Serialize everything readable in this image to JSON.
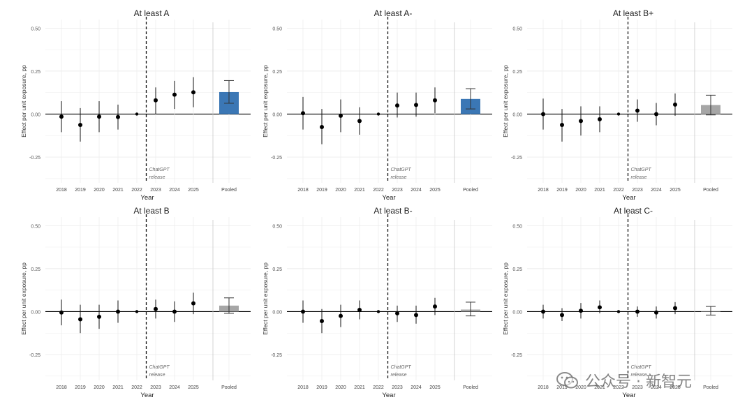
{
  "chart_data": [
    {
      "type": "scatter",
      "title": "At least A",
      "xlabel": "Year",
      "ylabel": "Effect per unit exposure, pp",
      "categories": [
        "2018",
        "2019",
        "2020",
        "2021",
        "2022",
        "2023",
        "2024",
        "2025"
      ],
      "values": [
        -0.015,
        -0.063,
        -0.015,
        -0.017,
        0.0,
        0.08,
        0.113,
        0.127
      ],
      "ci_low": [
        -0.105,
        -0.16,
        -0.105,
        -0.09,
        0.0,
        0.0,
        0.03,
        0.04
      ],
      "ci_high": [
        0.075,
        0.035,
        0.075,
        0.055,
        0.0,
        0.155,
        0.193,
        0.215
      ],
      "pooled": {
        "label": "Pooled",
        "value": 0.128,
        "ci_low": 0.063,
        "ci_high": 0.195,
        "color": "#3b77b5"
      },
      "yticks": [
        "0.50",
        "0.25",
        "0.00",
        "-0.25"
      ],
      "ylim": [
        -0.4,
        0.55
      ],
      "release_line": {
        "after": "2022",
        "label_line1": "ChatGPT",
        "label_line2": "release"
      }
    },
    {
      "type": "scatter",
      "title": "At least A-",
      "xlabel": "Year",
      "ylabel": "Effect per unit exposure, pp",
      "categories": [
        "2018",
        "2019",
        "2020",
        "2021",
        "2022",
        "2023",
        "2024",
        "2025"
      ],
      "values": [
        0.005,
        -0.075,
        -0.01,
        -0.04,
        0.0,
        0.05,
        0.053,
        0.08
      ],
      "ci_low": [
        -0.09,
        -0.175,
        -0.105,
        -0.12,
        0.0,
        -0.02,
        -0.015,
        0.005
      ],
      "ci_high": [
        0.1,
        0.03,
        0.085,
        0.04,
        0.0,
        0.125,
        0.125,
        0.155
      ],
      "pooled": {
        "label": "Pooled",
        "value": 0.088,
        "ci_low": 0.03,
        "ci_high": 0.148,
        "color": "#3b77b5"
      },
      "yticks": [
        "0.50",
        "0.25",
        "0.00",
        "-0.25"
      ],
      "ylim": [
        -0.4,
        0.55
      ],
      "release_line": {
        "after": "2022",
        "label_line1": "ChatGPT",
        "label_line2": "release"
      }
    },
    {
      "type": "scatter",
      "title": "At least B+",
      "xlabel": "Year",
      "ylabel": "Effect per unit exposure, pp",
      "categories": [
        "2018",
        "2019",
        "2020",
        "2021",
        "2022",
        "2023",
        "2024",
        "2025"
      ],
      "values": [
        0.0,
        -0.063,
        -0.04,
        -0.03,
        0.0,
        0.02,
        0.0,
        0.055
      ],
      "ci_low": [
        -0.09,
        -0.16,
        -0.125,
        -0.105,
        0.0,
        -0.045,
        -0.065,
        -0.01
      ],
      "ci_high": [
        0.09,
        0.03,
        0.045,
        0.045,
        0.0,
        0.085,
        0.065,
        0.12
      ],
      "pooled": {
        "label": "Pooled",
        "value": 0.053,
        "ci_low": -0.005,
        "ci_high": 0.11,
        "color": "#a6a6a6"
      },
      "yticks": [
        "0.50",
        "0.25",
        "0.00",
        "-0.25"
      ],
      "ylim": [
        -0.4,
        0.55
      ],
      "release_line": {
        "after": "2022",
        "label_line1": "ChatGPT",
        "label_line2": "release"
      }
    },
    {
      "type": "scatter",
      "title": "At least B",
      "xlabel": "Year",
      "ylabel": "Effect per unit exposure, pp",
      "categories": [
        "2018",
        "2019",
        "2020",
        "2021",
        "2022",
        "2023",
        "2024",
        "2025"
      ],
      "values": [
        -0.005,
        -0.045,
        -0.03,
        0.0,
        0.0,
        0.015,
        0.0,
        0.048
      ],
      "ci_low": [
        -0.08,
        -0.125,
        -0.1,
        -0.065,
        0.0,
        -0.04,
        -0.06,
        -0.015
      ],
      "ci_high": [
        0.07,
        0.04,
        0.04,
        0.065,
        0.0,
        0.07,
        0.06,
        0.11
      ],
      "pooled": {
        "label": "Pooled",
        "value": 0.035,
        "ci_low": -0.01,
        "ci_high": 0.08,
        "color": "#a6a6a6"
      },
      "yticks": [
        "0.50",
        "0.25",
        "0.00",
        "-0.25"
      ],
      "ylim": [
        -0.4,
        0.55
      ],
      "release_line": {
        "after": "2022",
        "label_line1": "ChatGPT",
        "label_line2": "release"
      }
    },
    {
      "type": "scatter",
      "title": "At least B-",
      "xlabel": "Year",
      "ylabel": "Effect per unit exposure, pp",
      "categories": [
        "2018",
        "2019",
        "2020",
        "2021",
        "2022",
        "2023",
        "2024",
        "2025"
      ],
      "values": [
        0.0,
        -0.055,
        -0.025,
        0.01,
        0.0,
        -0.01,
        -0.02,
        0.03
      ],
      "ci_low": [
        -0.065,
        -0.125,
        -0.09,
        -0.045,
        0.0,
        -0.06,
        -0.07,
        -0.02
      ],
      "ci_high": [
        0.065,
        0.015,
        0.04,
        0.065,
        0.0,
        0.035,
        0.035,
        0.08
      ],
      "pooled": {
        "label": "Pooled",
        "value": 0.012,
        "ci_low": -0.025,
        "ci_high": 0.055,
        "color": "#a6a6a6"
      },
      "yticks": [
        "0.50",
        "0.25",
        "0.00",
        "-0.25"
      ],
      "ylim": [
        -0.4,
        0.55
      ],
      "release_line": {
        "after": "2022",
        "label_line1": "ChatGPT",
        "label_line2": "release"
      }
    },
    {
      "type": "scatter",
      "title": "At least C-",
      "xlabel": "Year",
      "ylabel": "Effect per unit exposure, pp",
      "categories": [
        "2018",
        "2019",
        "2020",
        "2021",
        "2022",
        "2023",
        "2024",
        "2025"
      ],
      "values": [
        0.0,
        -0.02,
        0.005,
        0.025,
        0.0,
        0.0,
        -0.005,
        0.02
      ],
      "ci_low": [
        -0.04,
        -0.055,
        -0.04,
        -0.01,
        0.0,
        -0.03,
        -0.04,
        -0.015
      ],
      "ci_high": [
        0.04,
        0.02,
        0.05,
        0.065,
        0.0,
        0.03,
        0.03,
        0.055
      ],
      "pooled": {
        "label": "Pooled",
        "value": 0.0,
        "ci_low": -0.02,
        "ci_high": 0.03,
        "color": "#a6a6a6"
      },
      "yticks": [
        "0.50",
        "0.25",
        "0.00",
        "-0.25"
      ],
      "ylim": [
        -0.4,
        0.55
      ],
      "release_line": {
        "after": "2022",
        "label_line1": "ChatGPT",
        "label_line2": "release"
      }
    }
  ],
  "watermark": {
    "text": "公众号 · 新智元",
    "icon": "wechat-icon"
  }
}
